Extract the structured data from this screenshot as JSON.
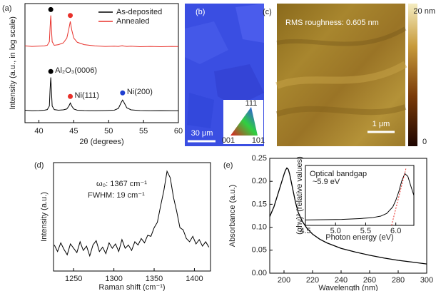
{
  "chart_data": [
    {
      "type": "line",
      "panel_label": "(a)",
      "xlabel": "2θ (degrees)",
      "ylabel": "Intensity (a.u., in log scale)",
      "xlim": [
        38,
        60
      ],
      "xticks": [
        40,
        45,
        50,
        55,
        60
      ],
      "ylim": [
        0,
        100
      ],
      "legend": "upper right",
      "x": [
        38,
        39,
        40,
        40.8,
        41.2,
        41.5,
        41.6,
        41.7,
        41.8,
        41.9,
        42.2,
        42.8,
        43.5,
        44.0,
        44.3,
        44.5,
        44.7,
        45.0,
        45.5,
        46.5,
        48,
        49.5,
        50.8,
        51.4,
        51.8,
        52.0,
        52.2,
        52.6,
        53.2,
        54.5,
        56,
        57.5,
        59,
        60
      ],
      "series": [
        {
          "name": "As-deposited",
          "color": "#000000",
          "values": [
            10.5,
            10,
            10.2,
            10.5,
            11,
            14,
            28,
            38,
            26,
            14,
            11,
            10.5,
            10.8,
            11.5,
            14,
            16.5,
            14,
            11.5,
            10.5,
            10.2,
            10,
            10.2,
            10.5,
            12,
            17,
            19,
            17,
            12.5,
            10.8,
            10.2,
            10,
            10.1,
            10,
            10
          ]
        },
        {
          "name": "Annealed",
          "color": "#e8302a",
          "values": [
            64.5,
            64,
            64.3,
            64.5,
            65,
            68,
            80,
            90,
            78,
            68,
            65,
            65.5,
            67,
            71,
            79,
            85,
            78,
            71,
            67.5,
            65.5,
            64.5,
            64,
            64.2,
            64,
            64.5,
            64.6,
            64.3,
            64,
            64.2,
            63.8,
            64,
            63.8,
            64,
            63.9
          ]
        }
      ],
      "markers": [
        {
          "x": 41.7,
          "y": 95,
          "color": "#000000"
        },
        {
          "x": 44.5,
          "y": 90,
          "color": "#e8302a"
        },
        {
          "x": 41.7,
          "y": 43,
          "color": "#000000",
          "label": "Al₂O₃(0006)"
        },
        {
          "x": 44.5,
          "y": 22,
          "color": "#e8302a",
          "label": "Ni(111)"
        },
        {
          "x": 52,
          "y": 25,
          "color": "#1f3fd0",
          "label": "Ni(200)"
        }
      ]
    },
    {
      "type": "line",
      "panel_label": "(d)",
      "xlabel": "Raman shift (cm⁻¹)",
      "ylabel": "Intensity (a.u.)",
      "xlim": [
        1225,
        1420
      ],
      "xticks": [
        1250,
        1300,
        1350,
        1400
      ],
      "ylim": [
        0,
        100
      ],
      "annotations": [
        "ω₀: 1367 cm⁻¹",
        "FWHM: 19 cm⁻¹"
      ],
      "x": [
        1226,
        1230,
        1234,
        1238,
        1242,
        1246,
        1250,
        1254,
        1258,
        1262,
        1266,
        1270,
        1274,
        1278,
        1282,
        1286,
        1290,
        1294,
        1298,
        1302,
        1306,
        1310,
        1314,
        1318,
        1322,
        1326,
        1330,
        1334,
        1338,
        1342,
        1346,
        1350,
        1354,
        1358,
        1362,
        1366,
        1370,
        1374,
        1378,
        1382,
        1386,
        1390,
        1394,
        1398,
        1402,
        1406,
        1410,
        1414,
        1418
      ],
      "series": [
        {
          "color": "#000000",
          "values": [
            24,
            18,
            26,
            20,
            15,
            25,
            21,
            17,
            27,
            19,
            23,
            14,
            24,
            28,
            18,
            22,
            16,
            26,
            21,
            25,
            18,
            29,
            21,
            24,
            19,
            27,
            24,
            30,
            26,
            33,
            32,
            40,
            45,
            60,
            74,
            92,
            86,
            68,
            55,
            40,
            38,
            30,
            27,
            32,
            25,
            29,
            23,
            27,
            22
          ]
        }
      ]
    },
    {
      "type": "line",
      "panel_label": "(e)",
      "xlabel": "Wavelength (nm)",
      "ylabel": "Absorbance (a.u.)",
      "xlim": [
        190,
        300
      ],
      "xticks": [
        200,
        220,
        240,
        260,
        280,
        300
      ],
      "ylim": [
        0,
        0.25
      ],
      "yticks": [
        {
          "value": 0,
          "label": "0.00"
        },
        0.05,
        {
          "value": 0.1,
          "label": "0.10"
        },
        0.15,
        {
          "value": 0.2,
          "label": "0.20"
        },
        0.25
      ],
      "x": [
        190,
        193,
        196,
        198,
        200,
        201,
        202,
        203,
        204,
        206,
        208,
        210,
        213,
        216,
        220,
        225,
        230,
        240,
        250,
        260,
        270,
        280,
        290,
        300
      ],
      "series": [
        {
          "color": "#000000",
          "values": [
            0.123,
            0.145,
            0.175,
            0.195,
            0.215,
            0.224,
            0.229,
            0.226,
            0.215,
            0.185,
            0.155,
            0.132,
            0.112,
            0.098,
            0.085,
            0.074,
            0.066,
            0.054,
            0.046,
            0.039,
            0.033,
            0.028,
            0.024,
            0.02
          ]
        }
      ]
    },
    {
      "type": "line",
      "xlabel": "Photon energy (eV)",
      "ylabel": "(αhν)² (relative values)",
      "xlim": [
        4.5,
        6.3
      ],
      "xticks": [
        4.5,
        {
          "value": 5,
          "label": "5.0"
        },
        5.5,
        {
          "value": 6,
          "label": "6.0"
        }
      ],
      "ylim": [
        0,
        1.1
      ],
      "annotations": [
        "Optical bandgap",
        "~5.9 eV"
      ],
      "series": [
        {
          "color": "#000000",
          "x": [
            4.5,
            4.8,
            5.1,
            5.4,
            5.6,
            5.75,
            5.85,
            5.95,
            6.0,
            6.05,
            6.1,
            6.15,
            6.2,
            6.25,
            6.3
          ],
          "values": [
            0.1,
            0.105,
            0.11,
            0.125,
            0.14,
            0.17,
            0.22,
            0.34,
            0.46,
            0.62,
            0.82,
            0.95,
            0.9,
            0.72,
            0.55
          ]
        },
        {
          "color": "#e8302a",
          "line_style": "dotted",
          "x": [
            5.93,
            6.17
          ],
          "values": [
            0,
            1.05
          ]
        }
      ]
    }
  ],
  "image_panels": [
    {
      "label": "(b)",
      "scale_bar": "30 μm",
      "key_labels": [
        "111",
        "001",
        "101"
      ]
    },
    {
      "label": "(c)",
      "caption": "RMS roughness: 0.605 nm",
      "scale_bar": "1 μm",
      "colorbar_labels": [
        "20 nm",
        "0"
      ]
    }
  ]
}
